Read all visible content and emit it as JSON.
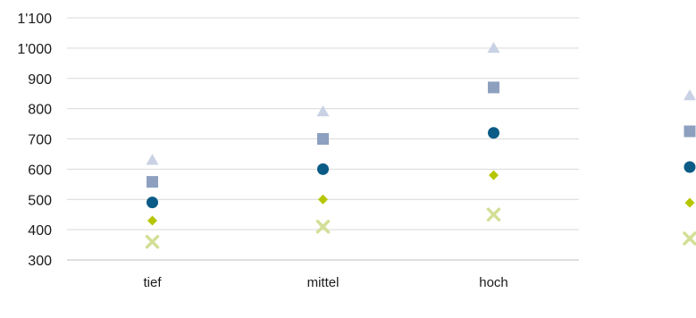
{
  "chart_data": {
    "type": "scatter",
    "title": "",
    "xlabel": "",
    "ylabel": "",
    "categories": [
      "tief",
      "mittel",
      "hoch"
    ],
    "ylim": [
      300,
      1100
    ],
    "yticks": [
      300,
      400,
      500,
      600,
      700,
      800,
      900,
      1000,
      1100
    ],
    "ytick_labels": [
      "300",
      "400",
      "500",
      "600",
      "700",
      "800",
      "900",
      "1'000",
      "1'100"
    ],
    "grid": true,
    "legend_position": "right",
    "series": [
      {
        "marker": "triangle",
        "color": "#c9d2e4",
        "values": [
          630,
          790,
          1000
        ]
      },
      {
        "marker": "square",
        "color": "#8da0bf",
        "values": [
          558,
          700,
          870
        ]
      },
      {
        "marker": "circle",
        "color": "#0a5b86",
        "values": [
          490,
          600,
          720
        ]
      },
      {
        "marker": "diamond",
        "color": "#b5c600",
        "values": [
          430,
          500,
          580
        ]
      },
      {
        "marker": "x",
        "color": "#d3df96",
        "values": [
          360,
          410,
          450
        ]
      }
    ]
  }
}
